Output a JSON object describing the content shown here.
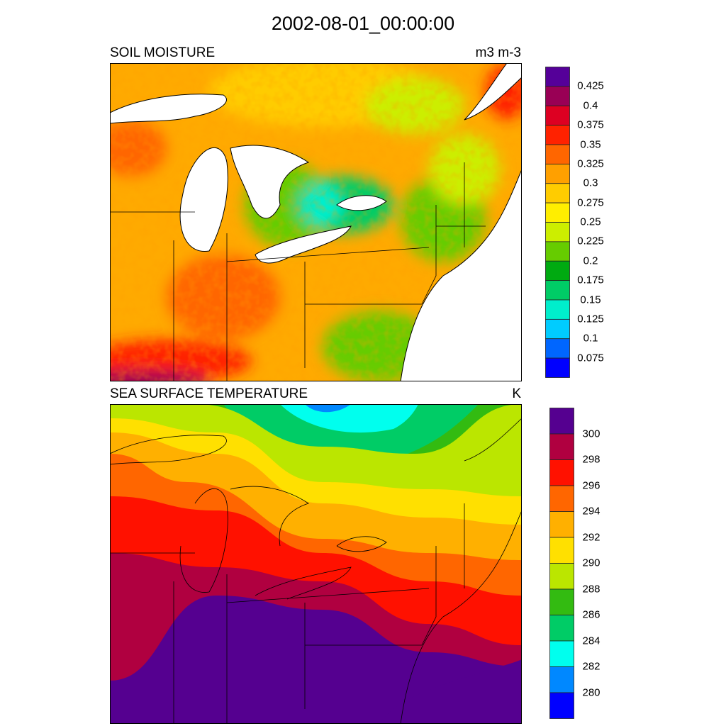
{
  "title": "2002-08-01_00:00:00",
  "panels": [
    {
      "name": "SOIL MOISTURE",
      "units": "m3 m-3",
      "colorbar": {
        "labels": [
          "0.425",
          "0.4",
          "0.375",
          "0.35",
          "0.325",
          "0.3",
          "0.275",
          "0.25",
          "0.225",
          "0.2",
          "0.175",
          "0.15",
          "0.125",
          "0.1",
          "0.075"
        ],
        "colors_top_to_bottom": [
          "#550099",
          "#990055",
          "#dd0022",
          "#ff2200",
          "#ff6600",
          "#ffa000",
          "#ffcc00",
          "#ffee00",
          "#ccee00",
          "#66cc00",
          "#00aa11",
          "#00cc66",
          "#00eecc",
          "#00ccff",
          "#0066ff",
          "#0000ff"
        ]
      }
    },
    {
      "name": "SEA SURFACE TEMPERATURE",
      "units": "K",
      "colorbar": {
        "labels": [
          "300",
          "298",
          "296",
          "294",
          "292",
          "290",
          "288",
          "286",
          "284",
          "282",
          "280"
        ],
        "colors_top_to_bottom": [
          "#550090",
          "#b00040",
          "#ff1100",
          "#ff6600",
          "#ffb000",
          "#ffe000",
          "#bbe600",
          "#33bb11",
          "#00cc66",
          "#00ffee",
          "#0088ff",
          "#0000ff"
        ]
      }
    }
  ]
}
